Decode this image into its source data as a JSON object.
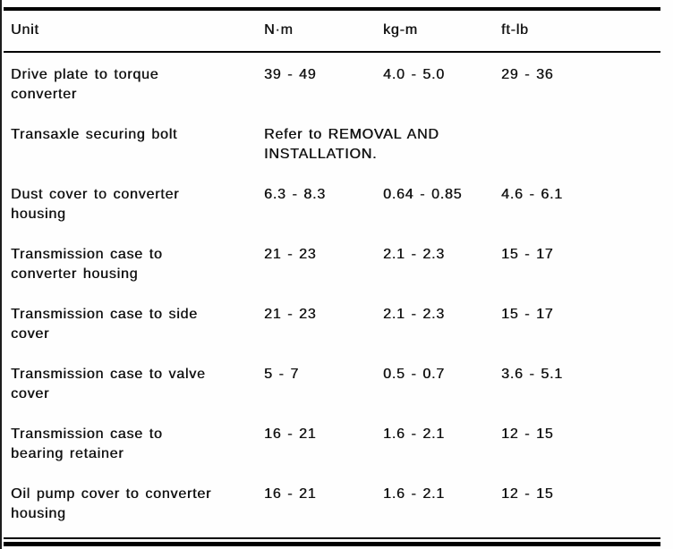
{
  "table": {
    "headers": [
      "Unit",
      "N·m",
      "kg-m",
      "ft-lb"
    ],
    "rows": [
      {
        "unit": "Drive plate to torque converter",
        "nm": "39 - 49",
        "kgm": "4.0 - 5.0",
        "ftlb": "29 - 36"
      },
      {
        "unit": "Transaxle securing bolt",
        "note": "Refer to REMOVAL AND INSTALLATION."
      },
      {
        "unit": "Dust cover to converter housing",
        "nm": "6.3 - 8.3",
        "kgm": "0.64 - 0.85",
        "ftlb": "4.6 - 6.1"
      },
      {
        "unit": "Transmission case to converter housing",
        "nm": "21 - 23",
        "kgm": "2.1 - 2.3",
        "ftlb": "15 - 17"
      },
      {
        "unit": "Transmission case to side cover",
        "nm": "21 - 23",
        "kgm": "2.1 - 2.3",
        "ftlb": "15 - 17"
      },
      {
        "unit": "Transmission case to valve cover",
        "nm": "5 - 7",
        "kgm": "0.5 - 0.7",
        "ftlb": "3.6 - 5.1"
      },
      {
        "unit": "Transmission case to bearing retainer",
        "nm": "16 - 21",
        "kgm": "1.6 - 2.1",
        "ftlb": "12 - 15"
      },
      {
        "unit": "Oil pump cover to converter housing",
        "nm": "16 - 21",
        "kgm": "1.6 - 2.1",
        "ftlb": "12 - 15"
      }
    ]
  }
}
